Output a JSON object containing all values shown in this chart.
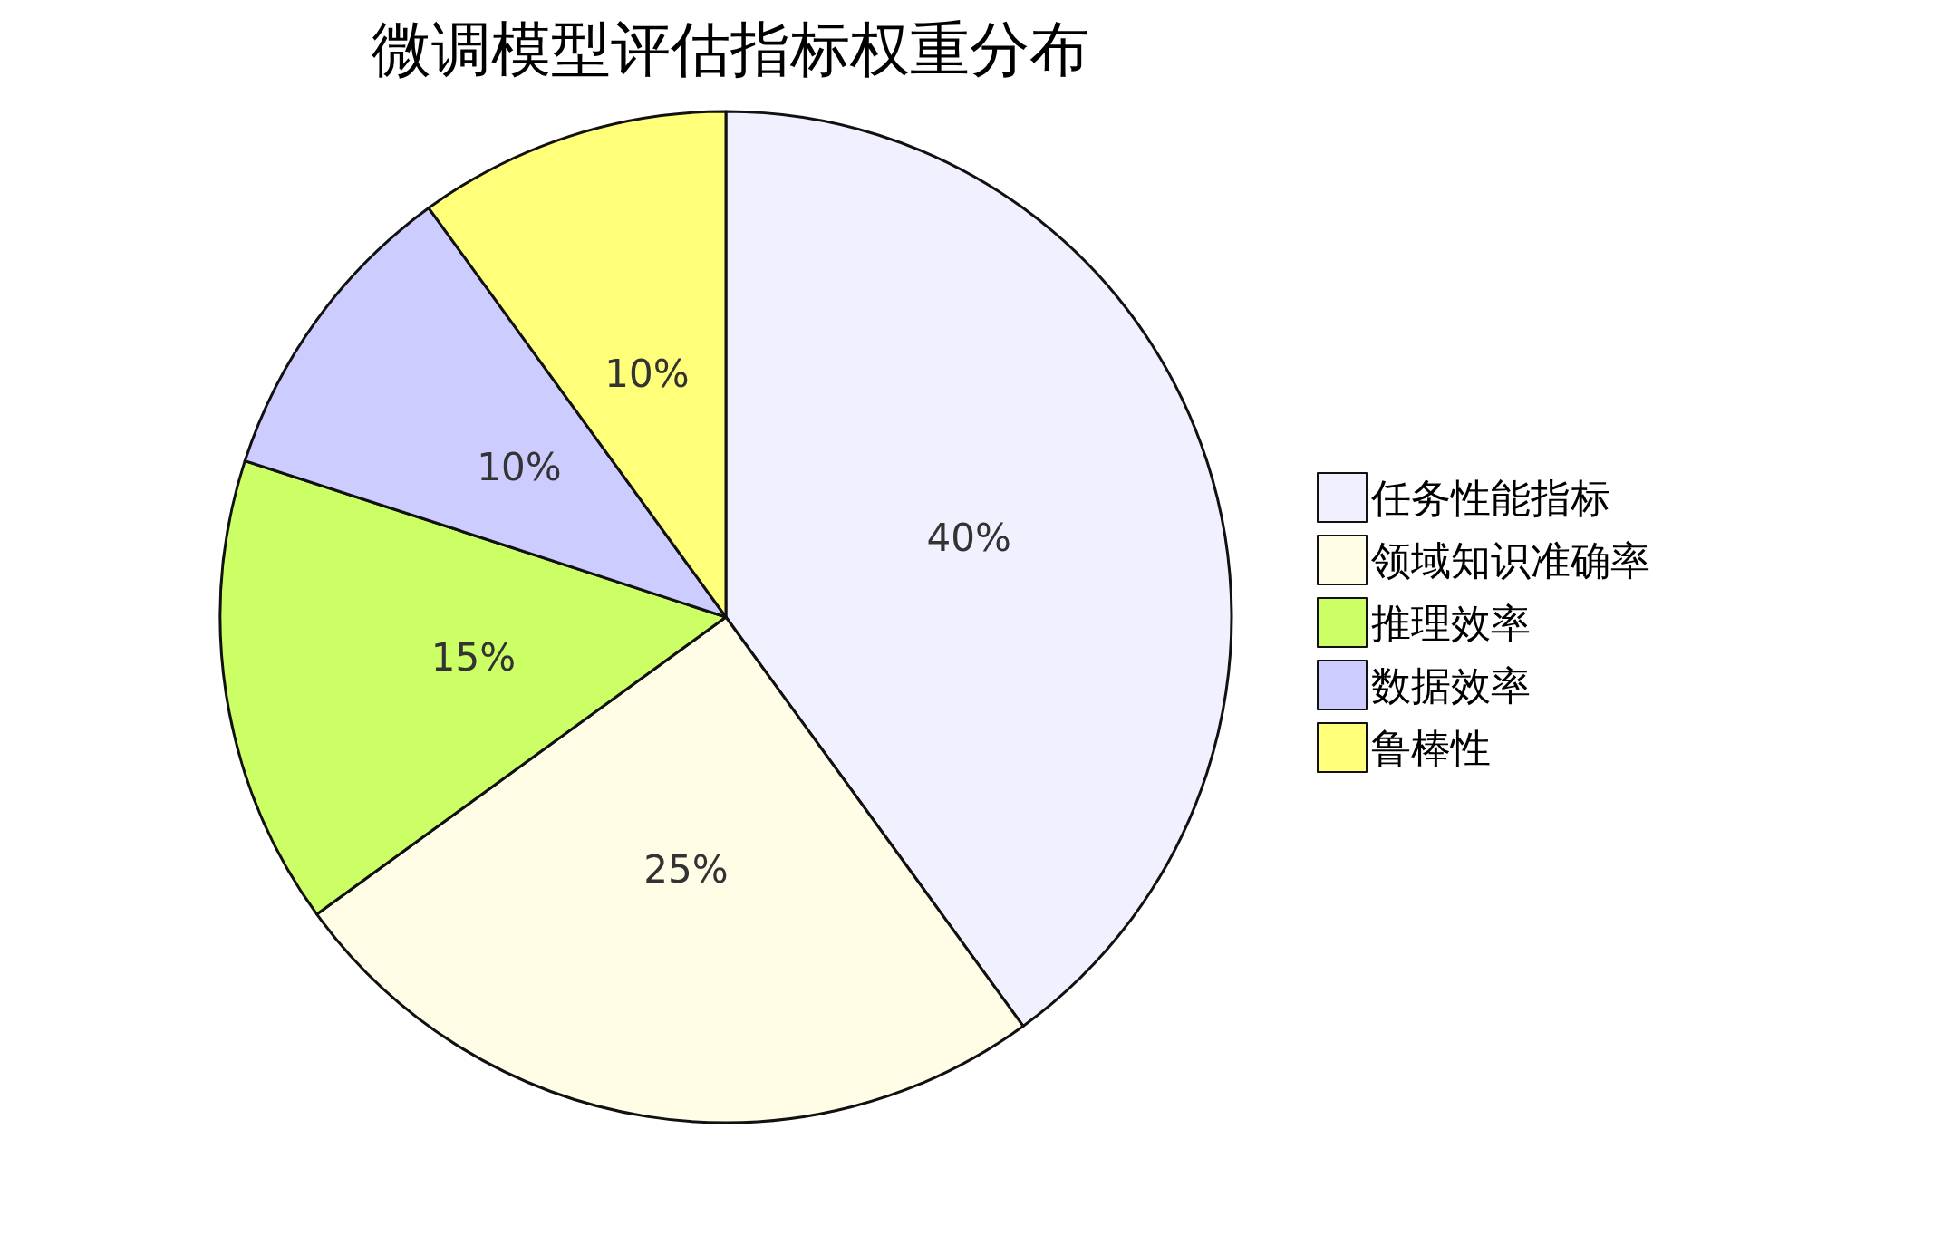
{
  "chart_data": {
    "type": "pie",
    "title": "微调模型评估指标权重分布",
    "categories": [
      "任务性能指标",
      "领域知识准确率",
      "推理效率",
      "数据效率",
      "鲁棒性"
    ],
    "values": [
      40,
      25,
      15,
      10,
      10
    ],
    "colors": [
      "#f0f0ff",
      "#fffde6",
      "#ccff66",
      "#ccccff",
      "#ffff7a"
    ],
    "value_labels": [
      "40%",
      "25%",
      "15%",
      "10%",
      "10%"
    ],
    "legend": "right"
  }
}
